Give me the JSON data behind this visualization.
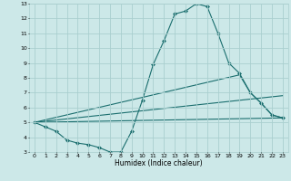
{
  "xlabel": "Humidex (Indice chaleur)",
  "background_color": "#cce8e8",
  "grid_color": "#aacfcf",
  "line_color": "#1a6e6e",
  "xlim": [
    -0.5,
    23.5
  ],
  "ylim": [
    3,
    13
  ],
  "xticks": [
    0,
    1,
    2,
    3,
    4,
    5,
    6,
    7,
    8,
    9,
    10,
    11,
    12,
    13,
    14,
    15,
    16,
    17,
    18,
    19,
    20,
    21,
    22,
    23
  ],
  "yticks": [
    3,
    4,
    5,
    6,
    7,
    8,
    9,
    10,
    11,
    12,
    13
  ],
  "lines": [
    {
      "x": [
        0,
        1,
        2,
        3,
        4,
        5,
        6,
        7,
        8,
        9,
        10,
        11,
        12,
        13,
        14,
        15,
        16,
        17,
        18,
        19,
        20,
        21,
        22,
        23
      ],
      "y": [
        5.0,
        4.7,
        4.4,
        3.8,
        3.6,
        3.5,
        3.3,
        3.0,
        3.0,
        4.4,
        6.5,
        8.9,
        10.5,
        12.3,
        12.5,
        13.0,
        12.8,
        11.0,
        9.0,
        8.3,
        7.0,
        6.3,
        5.5,
        5.3
      ],
      "marker": true
    },
    {
      "x": [
        0,
        19,
        20,
        21,
        22,
        23
      ],
      "y": [
        5.0,
        8.2,
        7.0,
        6.3,
        5.5,
        5.3
      ],
      "marker": false
    },
    {
      "x": [
        0,
        23
      ],
      "y": [
        5.0,
        6.8
      ],
      "marker": false
    },
    {
      "x": [
        0,
        23
      ],
      "y": [
        5.0,
        5.3
      ],
      "marker": false
    }
  ]
}
